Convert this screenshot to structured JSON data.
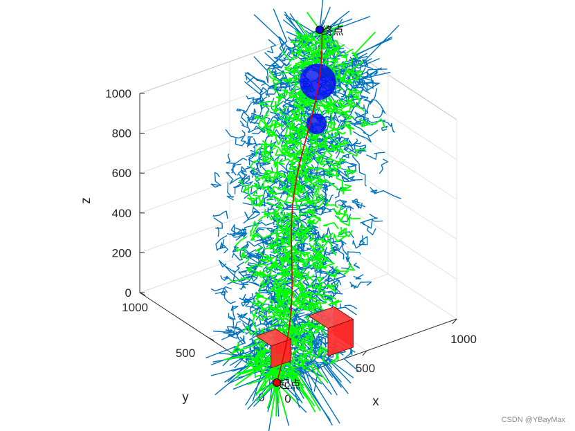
{
  "chart_data": {
    "type": "3d-path-planning",
    "xlabel": "x",
    "ylabel": "y",
    "zlabel": "z",
    "xlim": [
      0,
      1000
    ],
    "ylim": [
      0,
      1000
    ],
    "zlim": [
      0,
      1000
    ],
    "x_ticks": [
      "0",
      "500",
      "1000"
    ],
    "y_ticks": [
      "0",
      "500",
      "1000"
    ],
    "z_ticks": [
      "0",
      "200",
      "400",
      "600",
      "800",
      "1000"
    ],
    "grid": true,
    "start": {
      "label": "起点",
      "x": 0,
      "y": 0,
      "z": 0,
      "color": "#e00000"
    },
    "goal": {
      "label": "终点",
      "x": 1000,
      "y": 1000,
      "z": 1000,
      "color": "#1010d0"
    },
    "path_color": "#e00000",
    "tree_colors": {
      "tree_a": "#0072bd",
      "tree_b": "#00ff00"
    },
    "obstacles": {
      "spheres": [
        {
          "cx": 860,
          "cy": 830,
          "cz": 860,
          "r": 80,
          "color": "#0000ff"
        },
        {
          "cx": 800,
          "cy": 760,
          "cz": 700,
          "r": 45,
          "color": "#0000ff"
        }
      ],
      "cubes": [
        {
          "x0": 60,
          "y0": 120,
          "z0": 0,
          "size": 110,
          "color": "#ff0000"
        },
        {
          "x0": 330,
          "y0": 60,
          "z0": 0,
          "size": 140,
          "color": "#ff0000"
        }
      ]
    }
  },
  "watermark": "CSDN @YBayMax"
}
